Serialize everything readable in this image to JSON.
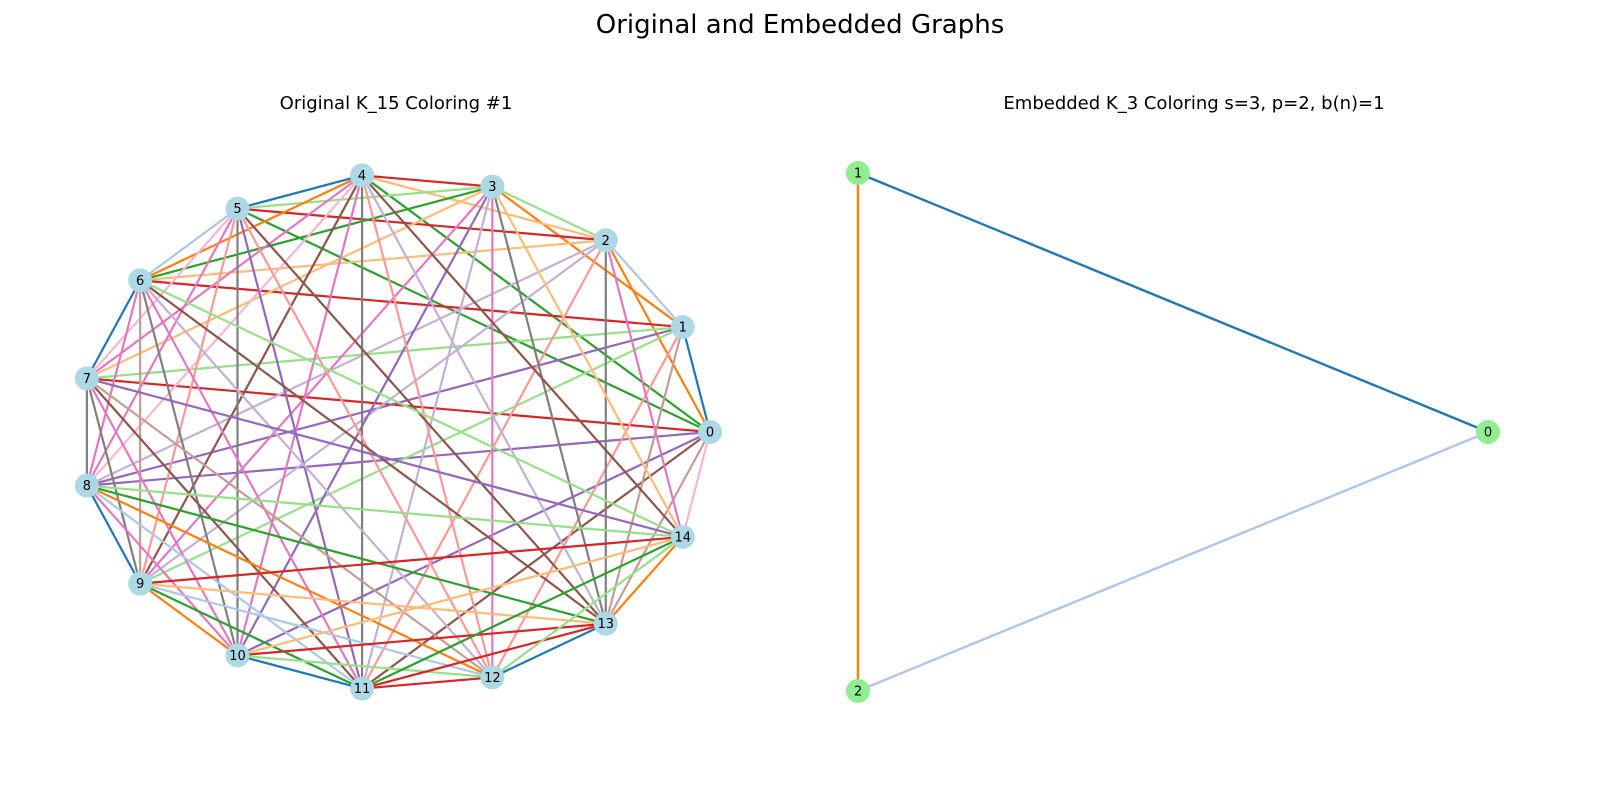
{
  "figure_title": "Original and Embedded Graphs",
  "left": {
    "title": "Original K_15 Coloring #1",
    "node_color": "#add8e6",
    "nodes": [
      "0",
      "1",
      "2",
      "3",
      "4",
      "5",
      "6",
      "7",
      "8",
      "9",
      "10",
      "11",
      "12",
      "13",
      "14"
    ],
    "palette": [
      "#1f77b4",
      "#aec7e8",
      "#ff7f0e",
      "#ffbb78",
      "#2ca02c",
      "#98df8a",
      "#d62728",
      "#ff9896",
      "#9467bd",
      "#c5b0d5",
      "#8c564b",
      "#c49c94",
      "#e377c2",
      "#f7b6d2",
      "#7f7f7f"
    ],
    "edges": [
      [
        0,
        1,
        0
      ],
      [
        1,
        2,
        1
      ],
      [
        2,
        3,
        5
      ],
      [
        3,
        4,
        6
      ],
      [
        4,
        5,
        0
      ],
      [
        5,
        6,
        1
      ],
      [
        6,
        7,
        0
      ],
      [
        7,
        8,
        14
      ],
      [
        8,
        9,
        0
      ],
      [
        9,
        10,
        2
      ],
      [
        10,
        11,
        0
      ],
      [
        11,
        12,
        6
      ],
      [
        12,
        13,
        0
      ],
      [
        13,
        14,
        2
      ],
      [
        14,
        0,
        13
      ],
      [
        0,
        2,
        2
      ],
      [
        0,
        4,
        4
      ],
      [
        0,
        5,
        4
      ],
      [
        0,
        7,
        6
      ],
      [
        0,
        8,
        8
      ],
      [
        0,
        10,
        8
      ],
      [
        0,
        11,
        10
      ],
      [
        0,
        13,
        11
      ],
      [
        1,
        3,
        2
      ],
      [
        1,
        6,
        6
      ],
      [
        1,
        7,
        5
      ],
      [
        1,
        8,
        8
      ],
      [
        1,
        9,
        5
      ],
      [
        1,
        12,
        7
      ],
      [
        1,
        13,
        11
      ],
      [
        2,
        4,
        3
      ],
      [
        2,
        5,
        6
      ],
      [
        2,
        6,
        3
      ],
      [
        2,
        8,
        9
      ],
      [
        2,
        9,
        9
      ],
      [
        2,
        11,
        7
      ],
      [
        2,
        13,
        14
      ],
      [
        2,
        14,
        12
      ],
      [
        3,
        5,
        5
      ],
      [
        3,
        6,
        4
      ],
      [
        3,
        7,
        3
      ],
      [
        3,
        9,
        12
      ],
      [
        3,
        10,
        8
      ],
      [
        3,
        11,
        9
      ],
      [
        3,
        12,
        12
      ],
      [
        3,
        13,
        14
      ],
      [
        3,
        14,
        3
      ],
      [
        4,
        6,
        2
      ],
      [
        4,
        7,
        12
      ],
      [
        4,
        8,
        13
      ],
      [
        4,
        9,
        10
      ],
      [
        4,
        10,
        12
      ],
      [
        4,
        11,
        14
      ],
      [
        4,
        12,
        7
      ],
      [
        4,
        13,
        9
      ],
      [
        4,
        14,
        10
      ],
      [
        5,
        7,
        13
      ],
      [
        5,
        8,
        12
      ],
      [
        5,
        9,
        7
      ],
      [
        5,
        10,
        14
      ],
      [
        5,
        11,
        8
      ],
      [
        5,
        12,
        7
      ],
      [
        5,
        13,
        10
      ],
      [
        6,
        8,
        12
      ],
      [
        6,
        9,
        11
      ],
      [
        6,
        10,
        14
      ],
      [
        6,
        11,
        12
      ],
      [
        6,
        12,
        9
      ],
      [
        6,
        13,
        10
      ],
      [
        6,
        14,
        5
      ],
      [
        7,
        9,
        14
      ],
      [
        7,
        10,
        12
      ],
      [
        7,
        11,
        10
      ],
      [
        7,
        12,
        11
      ],
      [
        7,
        14,
        8
      ],
      [
        8,
        10,
        12
      ],
      [
        8,
        11,
        1
      ],
      [
        8,
        12,
        2
      ],
      [
        8,
        13,
        4
      ],
      [
        8,
        14,
        5
      ],
      [
        9,
        11,
        4
      ],
      [
        9,
        12,
        1
      ],
      [
        9,
        13,
        3
      ],
      [
        9,
        14,
        6
      ],
      [
        10,
        12,
        5
      ],
      [
        10,
        13,
        6
      ],
      [
        10,
        14,
        3
      ],
      [
        11,
        13,
        6
      ],
      [
        11,
        14,
        4
      ],
      [
        12,
        14,
        5
      ]
    ]
  },
  "right": {
    "title": "Embedded K_3 Coloring s=3, p=2, b(n)=1",
    "node_color": "#90ee90",
    "nodes": [
      "0",
      "1",
      "2"
    ],
    "edges": [
      [
        0,
        1,
        "#1f77b4"
      ],
      [
        0,
        2,
        "#aec7e8"
      ],
      [
        1,
        2,
        "#ff7f0e"
      ]
    ]
  }
}
